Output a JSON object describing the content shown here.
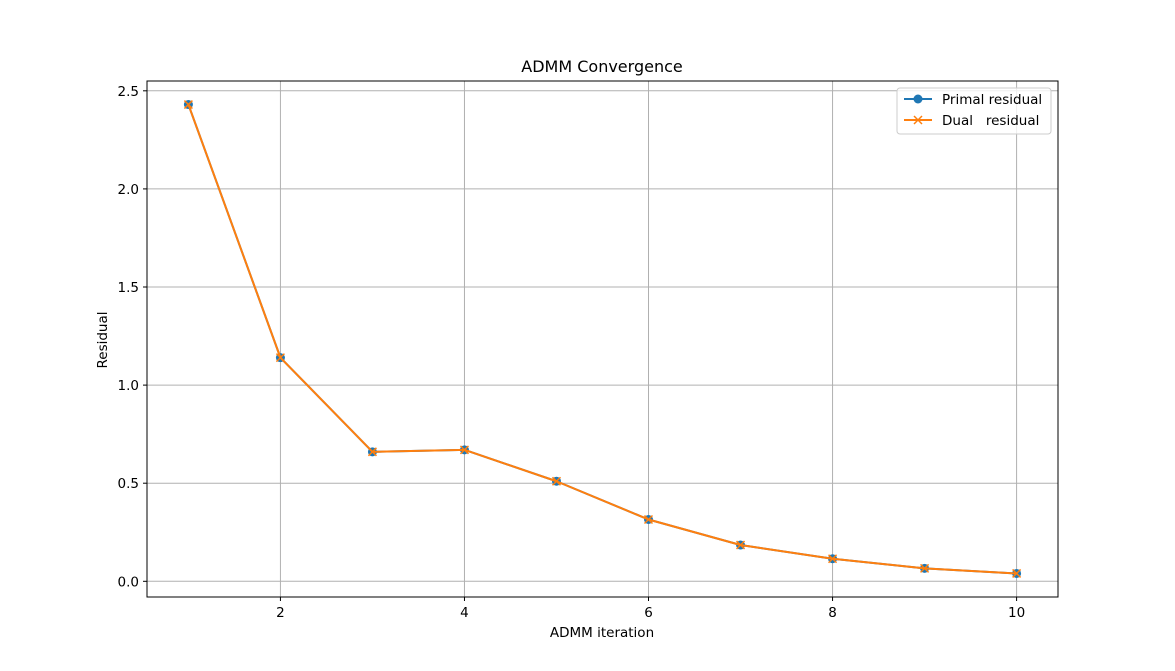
{
  "chart_data": {
    "type": "line",
    "title": "ADMM Convergence",
    "xlabel": "ADMM iteration",
    "ylabel": "Residual",
    "xlim": [
      0.55,
      10.45
    ],
    "ylim": [
      -0.08,
      2.55
    ],
    "xticks": [
      2,
      4,
      6,
      8,
      10
    ],
    "xtick_labels": [
      "2",
      "4",
      "6",
      "8",
      "10"
    ],
    "yticks": [
      0.0,
      0.5,
      1.0,
      1.5,
      2.0,
      2.5
    ],
    "ytick_labels": [
      "0.0",
      "0.5",
      "1.0",
      "1.5",
      "2.0",
      "2.5"
    ],
    "grid": true,
    "legend_position": "top-right",
    "x": [
      1,
      2,
      3,
      4,
      5,
      6,
      7,
      8,
      9,
      10
    ],
    "series": [
      {
        "name": "Primal residual",
        "color": "#1f77b4",
        "marker": "circle",
        "values": [
          2.43,
          1.14,
          0.66,
          0.67,
          0.51,
          0.315,
          0.185,
          0.115,
          0.066,
          0.04
        ]
      },
      {
        "name": "Dual   residual",
        "color": "#ff7f0e",
        "marker": "x",
        "values": [
          2.43,
          1.14,
          0.66,
          0.67,
          0.51,
          0.315,
          0.185,
          0.115,
          0.066,
          0.04
        ]
      }
    ]
  }
}
